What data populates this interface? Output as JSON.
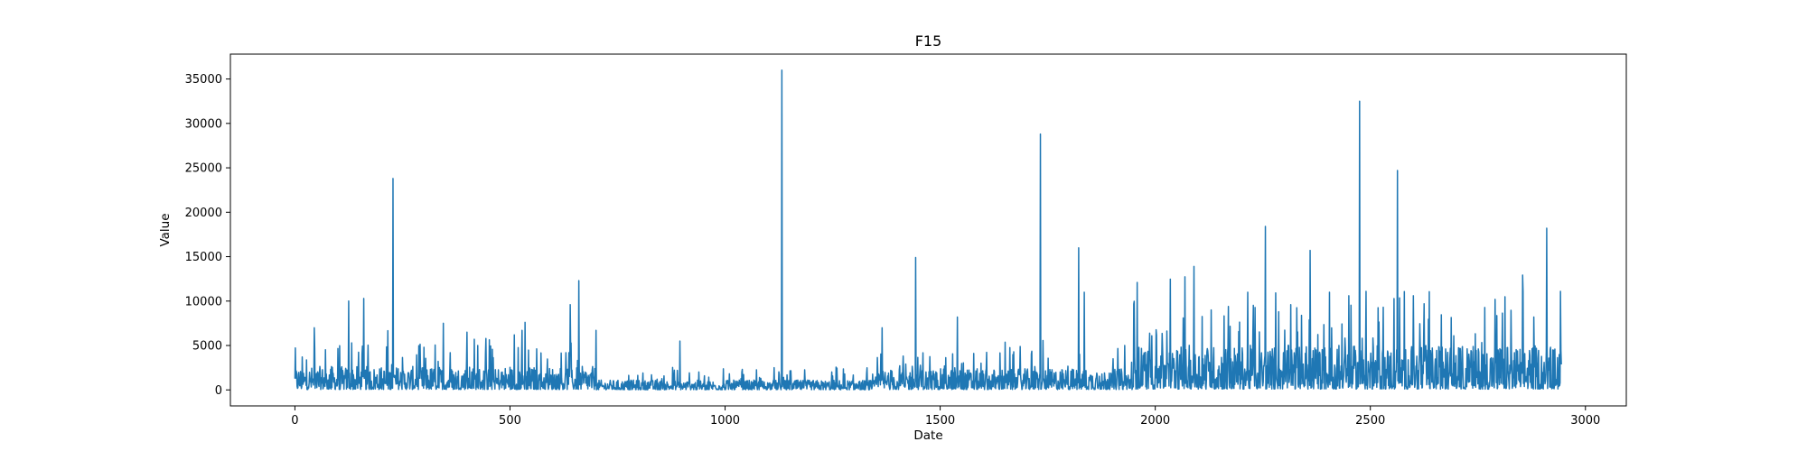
{
  "chart_data": {
    "type": "line",
    "title": "F15",
    "xlabel": "Date",
    "ylabel": "Value",
    "xlim": [
      -150,
      3095
    ],
    "ylim": [
      -1800,
      37800
    ],
    "xticks": [
      0,
      500,
      1000,
      1500,
      2000,
      2500,
      3000
    ],
    "yticks": [
      0,
      5000,
      10000,
      15000,
      20000,
      25000,
      30000,
      35000
    ],
    "grid": false,
    "series": [
      {
        "color": "#1f77b4",
        "n_points": 2945,
        "base_segments": [
          {
            "x": [
              0,
              700
            ],
            "level": 1000
          },
          {
            "x": [
              700,
              1350
            ],
            "level": 420
          },
          {
            "x": [
              1350,
              1950
            ],
            "level": 900
          },
          {
            "x": [
              1950,
              2945
            ],
            "level": 1900
          }
        ],
        "peaks": [
          {
            "x": 45,
            "y": 7000
          },
          {
            "x": 125,
            "y": 10000
          },
          {
            "x": 132,
            "y": 5300
          },
          {
            "x": 160,
            "y": 10300
          },
          {
            "x": 228,
            "y": 23800
          },
          {
            "x": 345,
            "y": 7500
          },
          {
            "x": 400,
            "y": 6500
          },
          {
            "x": 425,
            "y": 5000
          },
          {
            "x": 510,
            "y": 6200
          },
          {
            "x": 535,
            "y": 7600
          },
          {
            "x": 640,
            "y": 9600
          },
          {
            "x": 660,
            "y": 12300
          },
          {
            "x": 700,
            "y": 6700
          },
          {
            "x": 895,
            "y": 5500
          },
          {
            "x": 1132,
            "y": 36000
          },
          {
            "x": 1365,
            "y": 7000
          },
          {
            "x": 1443,
            "y": 14900
          },
          {
            "x": 1540,
            "y": 8200
          },
          {
            "x": 1733,
            "y": 28800
          },
          {
            "x": 1822,
            "y": 16000
          },
          {
            "x": 1835,
            "y": 11000
          },
          {
            "x": 1958,
            "y": 12100
          },
          {
            "x": 2090,
            "y": 13900
          },
          {
            "x": 2130,
            "y": 9000
          },
          {
            "x": 2170,
            "y": 9400
          },
          {
            "x": 2215,
            "y": 11000
          },
          {
            "x": 2256,
            "y": 18400
          },
          {
            "x": 2315,
            "y": 9600
          },
          {
            "x": 2360,
            "y": 15700
          },
          {
            "x": 2405,
            "y": 11000
          },
          {
            "x": 2450,
            "y": 10600
          },
          {
            "x": 2475,
            "y": 32500
          },
          {
            "x": 2490,
            "y": 11100
          },
          {
            "x": 2530,
            "y": 9300
          },
          {
            "x": 2563,
            "y": 24700
          },
          {
            "x": 2600,
            "y": 10600
          },
          {
            "x": 2625,
            "y": 9700
          },
          {
            "x": 2790,
            "y": 10200
          },
          {
            "x": 2880,
            "y": 8200
          },
          {
            "x": 2910,
            "y": 18200
          },
          {
            "x": 2942,
            "y": 11100
          }
        ]
      }
    ]
  }
}
